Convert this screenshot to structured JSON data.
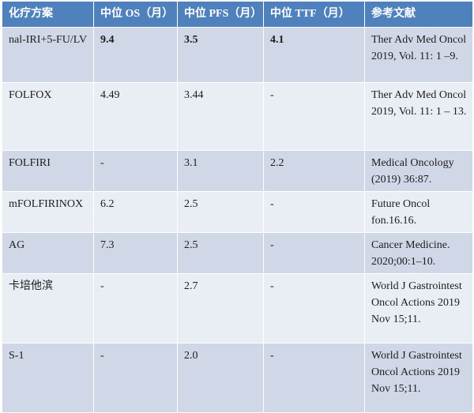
{
  "header": {
    "regimen": "化疗方案",
    "os": "中位 OS（月）",
    "pfs": "中位 PFS（月）",
    "ttf": "中位 TTF（月）",
    "reference": "参考文献"
  },
  "rows": [
    {
      "regimen": "nal-IRI+5-FU/LV",
      "os": "9.4",
      "pfs": "3.5",
      "ttf": "4.1",
      "reference": "Ther Adv Med Oncol 2019, Vol. 11: 1 –9."
    },
    {
      "regimen": "FOLFOX",
      "os": "4.49",
      "pfs": "3.44",
      "ttf": "-",
      "reference": "Ther Adv Med Oncol 2019, Vol. 11: 1 – 13."
    },
    {
      "regimen": "FOLFIRI",
      "os": "-",
      "pfs": "3.1",
      "ttf": "2.2",
      "reference": "Medical Oncology (2019) 36:87."
    },
    {
      "regimen": "mFOLFIRINOX",
      "os": "6.2",
      "pfs": "2.5",
      "ttf": "-",
      "reference": "Future Oncol fon.16.16."
    },
    {
      "regimen": "AG",
      "os": "7.3",
      "pfs": "2.5",
      "ttf": "-",
      "reference": "Cancer Medicine. 2020;00:1–10."
    },
    {
      "regimen": "卡培他滨",
      "os": "-",
      "pfs": "2.7",
      "ttf": "-",
      "reference": "World J Gastrointest Oncol Actions 2019 Nov 15;11."
    },
    {
      "regimen": "S-1",
      "os": "-",
      "pfs": "2.0",
      "ttf": "-",
      "reference": "World J Gastrointest Oncol Actions 2019 Nov 15;11."
    }
  ],
  "colors": {
    "header_bg": "#4f81bd",
    "row_odd_bg": "#d0d8e8",
    "row_even_bg": "#e9edf4",
    "text": "#1d1d1d"
  }
}
